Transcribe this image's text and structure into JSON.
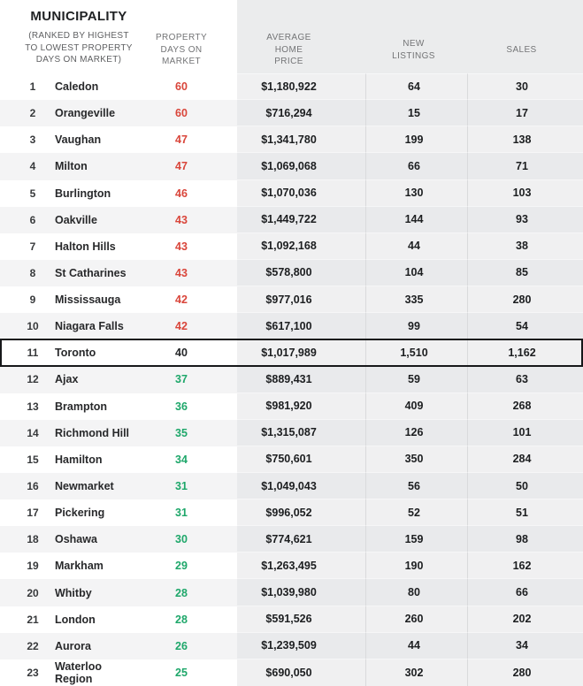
{
  "header": {
    "title": "MUNICIPALITY",
    "subtitle": "(RANKED BY HIGHEST\nTO LOWEST PROPERTY\nDAYS ON MARKET)",
    "col_days": "PROPERTY\nDAYS ON\nMARKET",
    "col_price": "AVERAGE\nHOME\nPRICE",
    "col_listings": "NEW\nLISTINGS",
    "col_sales": "SALES"
  },
  "colors": {
    "days_high": "#d9453a",
    "days_low": "#1ea76a",
    "days_neutral": "#232527",
    "highlight_border": "#17181a"
  },
  "chart_data": {
    "type": "table",
    "title": "MUNICIPALITY (RANKED BY HIGHEST TO LOWEST PROPERTY DAYS ON MARKET)",
    "columns": [
      "Rank",
      "Municipality",
      "Property Days on Market",
      "Average Home Price",
      "New Listings",
      "Sales"
    ],
    "highlighted_municipality": "Toronto",
    "rows": [
      {
        "rank": 1,
        "municipality": "Caledon",
        "days": 60,
        "days_trend": "high",
        "price": "$1,180,922",
        "new_listings": "64",
        "sales": "30",
        "highlighted": false
      },
      {
        "rank": 2,
        "municipality": "Orangeville",
        "days": 60,
        "days_trend": "high",
        "price": "$716,294",
        "new_listings": "15",
        "sales": "17",
        "highlighted": false
      },
      {
        "rank": 3,
        "municipality": "Vaughan",
        "days": 47,
        "days_trend": "high",
        "price": "$1,341,780",
        "new_listings": "199",
        "sales": "138",
        "highlighted": false
      },
      {
        "rank": 4,
        "municipality": "Milton",
        "days": 47,
        "days_trend": "high",
        "price": "$1,069,068",
        "new_listings": "66",
        "sales": "71",
        "highlighted": false
      },
      {
        "rank": 5,
        "municipality": "Burlington",
        "days": 46,
        "days_trend": "high",
        "price": "$1,070,036",
        "new_listings": "130",
        "sales": "103",
        "highlighted": false
      },
      {
        "rank": 6,
        "municipality": "Oakville",
        "days": 43,
        "days_trend": "high",
        "price": "$1,449,722",
        "new_listings": "144",
        "sales": "93",
        "highlighted": false
      },
      {
        "rank": 7,
        "municipality": "Halton Hills",
        "days": 43,
        "days_trend": "high",
        "price": "$1,092,168",
        "new_listings": "44",
        "sales": "38",
        "highlighted": false
      },
      {
        "rank": 8,
        "municipality": "St Catharines",
        "days": 43,
        "days_trend": "high",
        "price": "$578,800",
        "new_listings": "104",
        "sales": "85",
        "highlighted": false
      },
      {
        "rank": 9,
        "municipality": "Mississauga",
        "days": 42,
        "days_trend": "high",
        "price": "$977,016",
        "new_listings": "335",
        "sales": "280",
        "highlighted": false
      },
      {
        "rank": 10,
        "municipality": "Niagara Falls",
        "days": 42,
        "days_trend": "high",
        "price": "$617,100",
        "new_listings": "99",
        "sales": "54",
        "highlighted": false
      },
      {
        "rank": 11,
        "municipality": "Toronto",
        "days": 40,
        "days_trend": "neutral",
        "price": "$1,017,989",
        "new_listings": "1,510",
        "sales": "1,162",
        "highlighted": true
      },
      {
        "rank": 12,
        "municipality": "Ajax",
        "days": 37,
        "days_trend": "low",
        "price": "$889,431",
        "new_listings": "59",
        "sales": "63",
        "highlighted": false
      },
      {
        "rank": 13,
        "municipality": "Brampton",
        "days": 36,
        "days_trend": "low",
        "price": "$981,920",
        "new_listings": "409",
        "sales": "268",
        "highlighted": false
      },
      {
        "rank": 14,
        "municipality": "Richmond Hill",
        "days": 35,
        "days_trend": "low",
        "price": "$1,315,087",
        "new_listings": "126",
        "sales": "101",
        "highlighted": false
      },
      {
        "rank": 15,
        "municipality": "Hamilton",
        "days": 34,
        "days_trend": "low",
        "price": "$750,601",
        "new_listings": "350",
        "sales": "284",
        "highlighted": false
      },
      {
        "rank": 16,
        "municipality": "Newmarket",
        "days": 31,
        "days_trend": "low",
        "price": "$1,049,043",
        "new_listings": "56",
        "sales": "50",
        "highlighted": false
      },
      {
        "rank": 17,
        "municipality": "Pickering",
        "days": 31,
        "days_trend": "low",
        "price": "$996,052",
        "new_listings": "52",
        "sales": "51",
        "highlighted": false
      },
      {
        "rank": 18,
        "municipality": "Oshawa",
        "days": 30,
        "days_trend": "low",
        "price": "$774,621",
        "new_listings": "159",
        "sales": "98",
        "highlighted": false
      },
      {
        "rank": 19,
        "municipality": "Markham",
        "days": 29,
        "days_trend": "low",
        "price": "$1,263,495",
        "new_listings": "190",
        "sales": "162",
        "highlighted": false
      },
      {
        "rank": 20,
        "municipality": "Whitby",
        "days": 28,
        "days_trend": "low",
        "price": "$1,039,980",
        "new_listings": "80",
        "sales": "66",
        "highlighted": false
      },
      {
        "rank": 21,
        "municipality": "London",
        "days": 28,
        "days_trend": "low",
        "price": "$591,526",
        "new_listings": "260",
        "sales": "202",
        "highlighted": false
      },
      {
        "rank": 22,
        "municipality": "Aurora",
        "days": 26,
        "days_trend": "low",
        "price": "$1,239,509",
        "new_listings": "44",
        "sales": "34",
        "highlighted": false
      },
      {
        "rank": 23,
        "municipality": "Waterloo Region",
        "days": 25,
        "days_trend": "low",
        "price": "$690,050",
        "new_listings": "302",
        "sales": "280",
        "highlighted": false
      }
    ]
  }
}
